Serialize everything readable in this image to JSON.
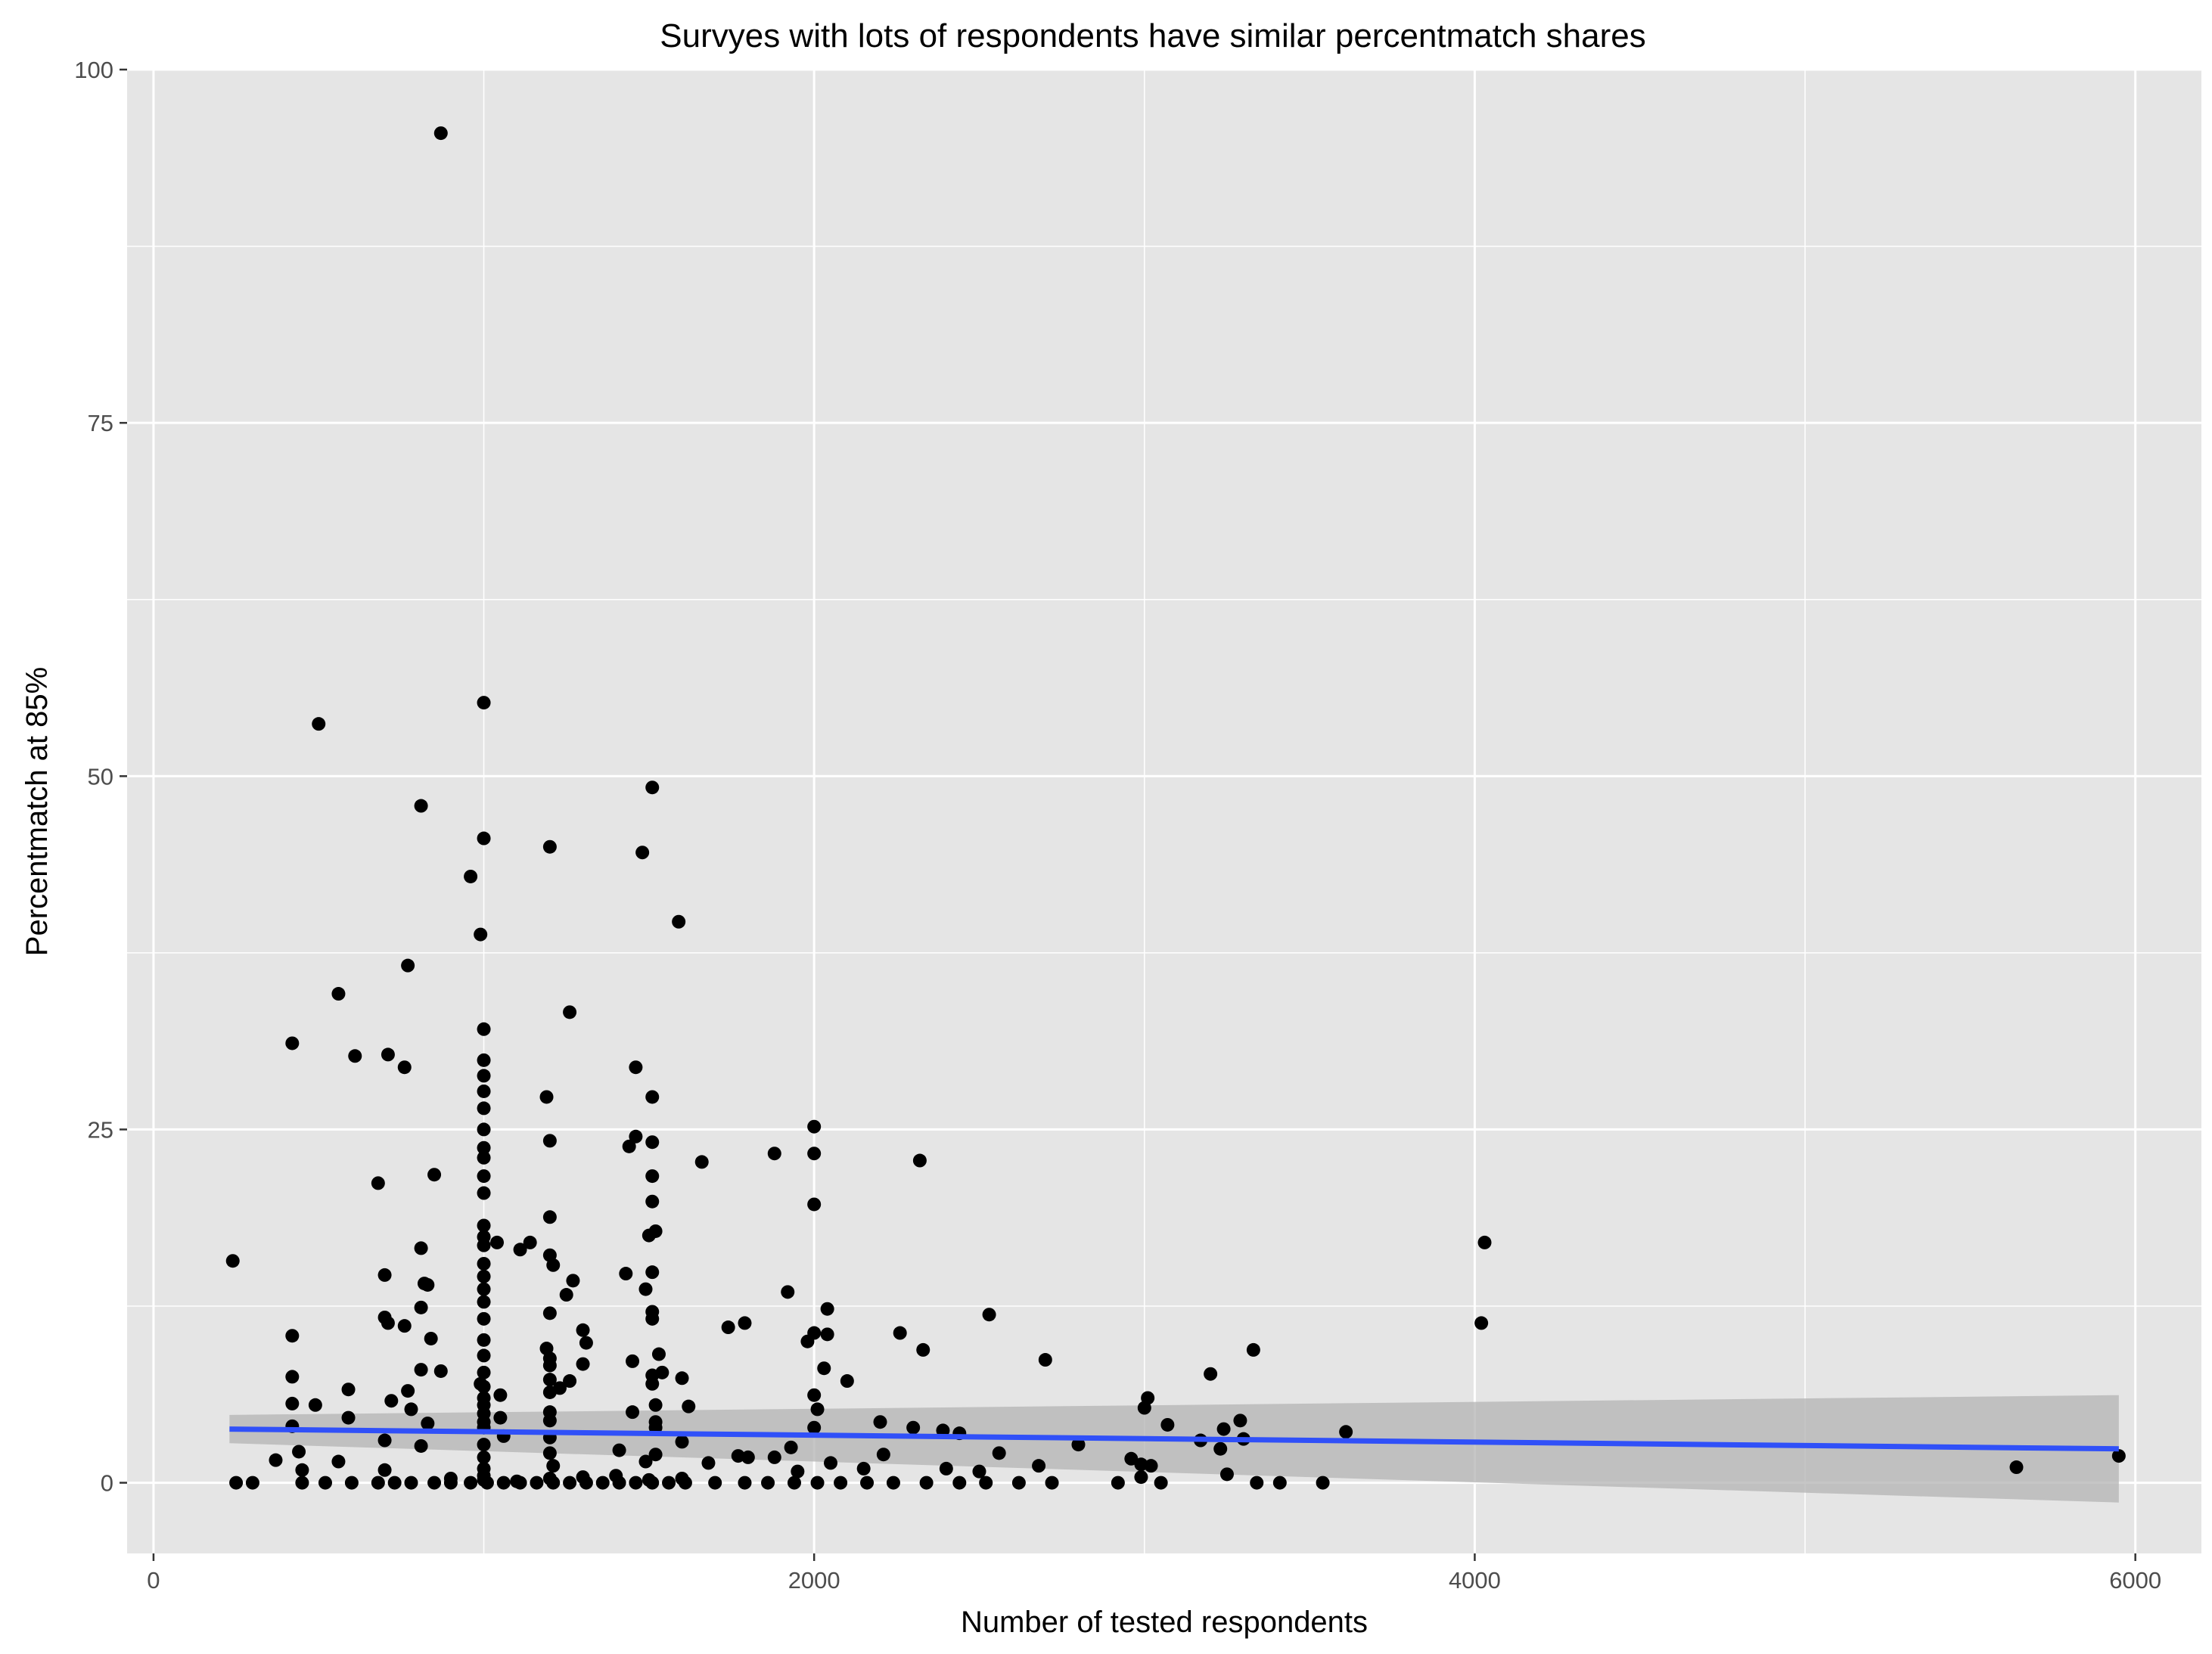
{
  "chart_data": {
    "type": "scatter",
    "title": "Survyes with lots of respondents have similar percentmatch shares",
    "xlabel": "Number of tested respondents",
    "ylabel": "Percentmatch at 85%",
    "xlim": [
      -80,
      6200
    ],
    "ylim": [
      -5,
      100
    ],
    "x_ticks": [
      0,
      2000,
      4000,
      6000
    ],
    "x_tick_labels": [
      "0",
      "2000",
      "4000",
      "6000"
    ],
    "y_ticks": [
      0,
      25,
      50,
      75,
      100
    ],
    "y_tick_labels": [
      "0",
      "25",
      "50",
      "75",
      "100"
    ],
    "grid": true,
    "legend": "none",
    "colors": {
      "panel_background": "#e5e5e5",
      "grid": "#ffffff",
      "points": "#000000",
      "trend_line": "#3050f8",
      "confidence_band": "#b3b3b3"
    },
    "trend": {
      "method": "linear",
      "x": [
        230,
        5950
      ],
      "y": [
        3.8,
        2.4
      ],
      "ci_lower": [
        2.8,
        -1.4
      ],
      "ci_upper": [
        4.8,
        6.2
      ]
    },
    "points": [
      [
        870,
        95.5
      ],
      [
        500,
        53.7
      ],
      [
        1000,
        55.2
      ],
      [
        1510,
        49.2
      ],
      [
        810,
        47.9
      ],
      [
        1000,
        45.6
      ],
      [
        1200,
        45.0
      ],
      [
        1480,
        44.6
      ],
      [
        960,
        42.9
      ],
      [
        1590,
        39.7
      ],
      [
        990,
        38.8
      ],
      [
        770,
        36.6
      ],
      [
        560,
        34.6
      ],
      [
        1260,
        33.3
      ],
      [
        1000,
        32.1
      ],
      [
        420,
        31.1
      ],
      [
        610,
        30.2
      ],
      [
        710,
        30.3
      ],
      [
        1000,
        29.9
      ],
      [
        760,
        29.4
      ],
      [
        1460,
        29.4
      ],
      [
        1000,
        28.8
      ],
      [
        1000,
        27.7
      ],
      [
        1190,
        27.3
      ],
      [
        1510,
        27.3
      ],
      [
        1000,
        26.5
      ],
      [
        2000,
        25.2
      ],
      [
        1000,
        25.0
      ],
      [
        1460,
        24.5
      ],
      [
        1200,
        24.2
      ],
      [
        1510,
        24.1
      ],
      [
        1000,
        23.7
      ],
      [
        1440,
        23.8
      ],
      [
        1880,
        23.3
      ],
      [
        2000,
        23.3
      ],
      [
        1000,
        23.0
      ],
      [
        2320,
        22.8
      ],
      [
        1660,
        22.7
      ],
      [
        1000,
        21.7
      ],
      [
        1510,
        21.7
      ],
      [
        850,
        21.8
      ],
      [
        680,
        21.2
      ],
      [
        1000,
        20.5
      ],
      [
        1510,
        19.9
      ],
      [
        2000,
        19.7
      ],
      [
        1200,
        18.8
      ],
      [
        1000,
        18.2
      ],
      [
        1520,
        17.8
      ],
      [
        1000,
        17.4
      ],
      [
        1500,
        17.5
      ],
      [
        1040,
        17.0
      ],
      [
        1000,
        16.8
      ],
      [
        1140,
        17.0
      ],
      [
        810,
        16.6
      ],
      [
        1110,
        16.5
      ],
      [
        4030,
        17.0
      ],
      [
        1200,
        16.1
      ],
      [
        1000,
        15.5
      ],
      [
        240,
        15.7
      ],
      [
        1210,
        15.4
      ],
      [
        700,
        14.7
      ],
      [
        1430,
        14.8
      ],
      [
        1510,
        14.9
      ],
      [
        1000,
        14.6
      ],
      [
        1270,
        14.3
      ],
      [
        820,
        14.1
      ],
      [
        830,
        14.0
      ],
      [
        1000,
        13.7
      ],
      [
        1490,
        13.7
      ],
      [
        1920,
        13.5
      ],
      [
        1250,
        13.3
      ],
      [
        1000,
        12.8
      ],
      [
        810,
        12.4
      ],
      [
        2040,
        12.3
      ],
      [
        1200,
        12.0
      ],
      [
        1510,
        12.1
      ],
      [
        2530,
        11.9
      ],
      [
        700,
        11.7
      ],
      [
        1000,
        11.6
      ],
      [
        1510,
        11.6
      ],
      [
        710,
        11.3
      ],
      [
        760,
        11.1
      ],
      [
        4020,
        11.3
      ],
      [
        1790,
        11.3
      ],
      [
        1740,
        11.0
      ],
      [
        1300,
        10.8
      ],
      [
        2000,
        10.6
      ],
      [
        2040,
        10.5
      ],
      [
        2260,
        10.6
      ],
      [
        420,
        10.4
      ],
      [
        840,
        10.2
      ],
      [
        1000,
        10.1
      ],
      [
        1980,
        10.0
      ],
      [
        1310,
        9.9
      ],
      [
        1190,
        9.5
      ],
      [
        2330,
        9.4
      ],
      [
        3330,
        9.4
      ],
      [
        1530,
        9.1
      ],
      [
        1000,
        9.0
      ],
      [
        1200,
        8.8
      ],
      [
        1450,
        8.6
      ],
      [
        2700,
        8.7
      ],
      [
        1300,
        8.4
      ],
      [
        1200,
        8.3
      ],
      [
        2030,
        8.1
      ],
      [
        810,
        8.0
      ],
      [
        870,
        7.9
      ],
      [
        1000,
        7.8
      ],
      [
        1540,
        7.8
      ],
      [
        1510,
        7.6
      ],
      [
        3200,
        7.7
      ],
      [
        420,
        7.5
      ],
      [
        1200,
        7.3
      ],
      [
        1260,
        7.2
      ],
      [
        1600,
        7.4
      ],
      [
        2100,
        7.2
      ],
      [
        1510,
        7.0
      ],
      [
        990,
        7.0
      ],
      [
        1000,
        6.8
      ],
      [
        1230,
        6.7
      ],
      [
        590,
        6.6
      ],
      [
        770,
        6.5
      ],
      [
        1200,
        6.4
      ],
      [
        1050,
        6.2
      ],
      [
        1000,
        6.0
      ],
      [
        2000,
        6.2
      ],
      [
        3010,
        6.0
      ],
      [
        720,
        5.8
      ],
      [
        420,
        5.6
      ],
      [
        1000,
        5.5
      ],
      [
        490,
        5.5
      ],
      [
        1520,
        5.5
      ],
      [
        1620,
        5.4
      ],
      [
        3000,
        5.3
      ],
      [
        780,
        5.2
      ],
      [
        1200,
        5.0
      ],
      [
        1000,
        4.9
      ],
      [
        1450,
        5.0
      ],
      [
        2010,
        5.2
      ],
      [
        590,
        4.6
      ],
      [
        1050,
        4.6
      ],
      [
        1000,
        4.3
      ],
      [
        1200,
        4.4
      ],
      [
        1520,
        4.3
      ],
      [
        830,
        4.2
      ],
      [
        3290,
        4.4
      ],
      [
        3070,
        4.1
      ],
      [
        2200,
        4.3
      ],
      [
        420,
        4.0
      ],
      [
        1000,
        3.9
      ],
      [
        1520,
        3.9
      ],
      [
        2000,
        3.9
      ],
      [
        2300,
        3.9
      ],
      [
        3240,
        3.8
      ],
      [
        3610,
        3.6
      ],
      [
        2390,
        3.7
      ],
      [
        2440,
        3.5
      ],
      [
        1060,
        3.3
      ],
      [
        1200,
        3.2
      ],
      [
        700,
        3.0
      ],
      [
        3170,
        3.0
      ],
      [
        3300,
        3.1
      ],
      [
        1600,
        2.9
      ],
      [
        1000,
        2.7
      ],
      [
        810,
        2.6
      ],
      [
        2800,
        2.7
      ],
      [
        1930,
        2.5
      ],
      [
        3230,
        2.4
      ],
      [
        1410,
        2.3
      ],
      [
        440,
        2.2
      ],
      [
        1200,
        2.1
      ],
      [
        1520,
        2.0
      ],
      [
        2560,
        2.1
      ],
      [
        2210,
        2.0
      ],
      [
        1770,
        1.9
      ],
      [
        1800,
        1.8
      ],
      [
        1000,
        1.8
      ],
      [
        370,
        1.6
      ],
      [
        1880,
        1.8
      ],
      [
        2960,
        1.7
      ],
      [
        560,
        1.5
      ],
      [
        1490,
        1.5
      ],
      [
        1680,
        1.4
      ],
      [
        2050,
        1.4
      ],
      [
        2990,
        1.3
      ],
      [
        3020,
        1.2
      ],
      [
        2680,
        1.2
      ],
      [
        5640,
        1.1
      ],
      [
        5950,
        1.9
      ],
      [
        2400,
        1.0
      ],
      [
        1210,
        1.2
      ],
      [
        1000,
        1.0
      ],
      [
        700,
        0.9
      ],
      [
        450,
        0.9
      ],
      [
        1950,
        0.8
      ],
      [
        2150,
        1.0
      ],
      [
        2500,
        0.8
      ],
      [
        3250,
        0.6
      ],
      [
        2990,
        0.4
      ],
      [
        1000,
        0.5
      ],
      [
        250,
        0.0
      ],
      [
        300,
        0.0
      ],
      [
        450,
        0.0
      ],
      [
        520,
        0.0
      ],
      [
        600,
        0.0
      ],
      [
        680,
        0.0
      ],
      [
        730,
        0.0
      ],
      [
        780,
        0.0
      ],
      [
        850,
        0.0
      ],
      [
        900,
        0.0
      ],
      [
        960,
        0.0
      ],
      [
        1010,
        0.0
      ],
      [
        1060,
        0.0
      ],
      [
        1110,
        0.0
      ],
      [
        1160,
        0.0
      ],
      [
        1210,
        0.0
      ],
      [
        1260,
        0.0
      ],
      [
        1310,
        0.0
      ],
      [
        1360,
        0.0
      ],
      [
        1410,
        0.0
      ],
      [
        1460,
        0.0
      ],
      [
        1510,
        0.0
      ],
      [
        1560,
        0.0
      ],
      [
        1610,
        0.0
      ],
      [
        1700,
        0.0
      ],
      [
        1790,
        0.0
      ],
      [
        1860,
        0.0
      ],
      [
        1940,
        0.0
      ],
      [
        2010,
        0.0
      ],
      [
        2080,
        0.0
      ],
      [
        2160,
        0.0
      ],
      [
        2240,
        0.0
      ],
      [
        2340,
        0.0
      ],
      [
        2440,
        0.0
      ],
      [
        2520,
        0.0
      ],
      [
        2620,
        0.0
      ],
      [
        2720,
        0.0
      ],
      [
        2920,
        0.0
      ],
      [
        3050,
        0.0
      ],
      [
        3340,
        0.0
      ],
      [
        3410,
        0.0
      ],
      [
        3540,
        0.0
      ],
      [
        1000,
        0.2
      ],
      [
        1200,
        0.3
      ],
      [
        1500,
        0.2
      ],
      [
        1300,
        0.4
      ],
      [
        1100,
        0.1
      ],
      [
        900,
        0.3
      ],
      [
        1400,
        0.5
      ],
      [
        1600,
        0.3
      ]
    ]
  }
}
